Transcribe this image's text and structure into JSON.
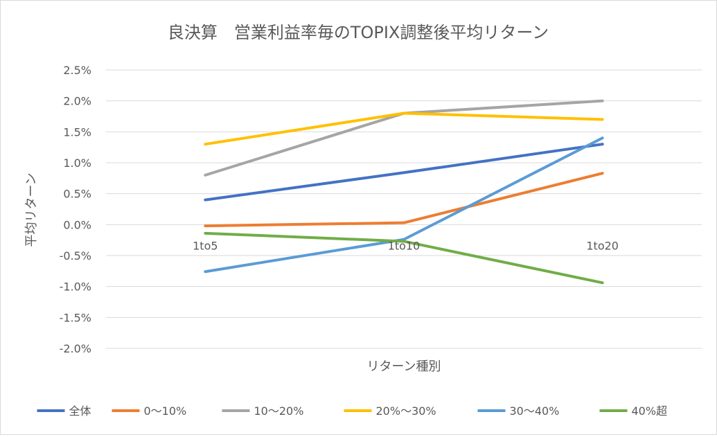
{
  "chart_data": {
    "type": "line",
    "title": "良決算　営業利益率毎のTOPIX調整後平均リターン",
    "xlabel": "リターン種別",
    "ylabel": "平均リターン",
    "categories": [
      "1to5",
      "1to10",
      "1to20"
    ],
    "ylim": [
      -0.02,
      0.025
    ],
    "yticks": [
      "2.5%",
      "2.0%",
      "1.5%",
      "1.0%",
      "0.5%",
      "0.0%",
      "-0.5%",
      "-1.0%",
      "-1.5%",
      "-2.0%"
    ],
    "ytick_values": [
      0.025,
      0.02,
      0.015,
      0.01,
      0.005,
      0.0,
      -0.005,
      -0.01,
      -0.015,
      -0.02
    ],
    "grid": true,
    "legend_position": "bottom",
    "series": [
      {
        "name": "全体",
        "color": "#4472C4",
        "values": [
          0.004,
          0.0084,
          0.013
        ]
      },
      {
        "name": "0～10%",
        "color": "#ED7D31",
        "values": [
          -0.0002,
          0.0003,
          0.0083
        ]
      },
      {
        "name": "10～20%",
        "color": "#A5A5A5",
        "values": [
          0.008,
          0.018,
          0.02
        ]
      },
      {
        "name": "20%～30%",
        "color": "#FFC000",
        "values": [
          0.013,
          0.018,
          0.017
        ]
      },
      {
        "name": "30～40%",
        "color": "#5B9BD5",
        "values": [
          -0.0076,
          -0.0024,
          0.014
        ]
      },
      {
        "name": "40%超",
        "color": "#70AD47",
        "values": [
          -0.0014,
          -0.0027,
          -0.0094
        ]
      }
    ]
  }
}
